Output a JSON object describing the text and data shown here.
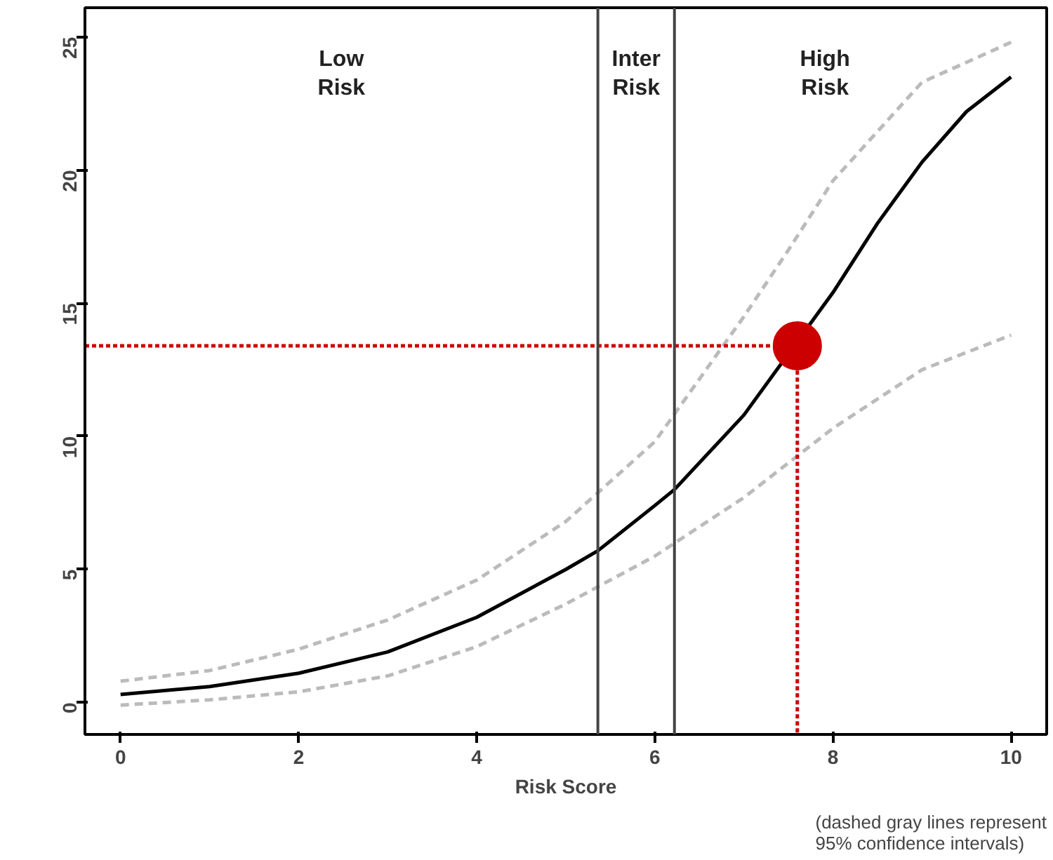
{
  "chart_data": {
    "type": "line",
    "xlabel": "Risk Score",
    "x": [
      0,
      1,
      2,
      3,
      4,
      5,
      5.36,
      6,
      6.22,
      7,
      8,
      8.5,
      9,
      9.5,
      10
    ],
    "series": [
      {
        "color": "#000000",
        "line_style": "solid",
        "values": [
          0.3,
          0.6,
          1.1,
          1.9,
          3.2,
          5.0,
          5.7,
          7.4,
          8.0,
          10.8,
          15.4,
          18.0,
          20.3,
          22.2,
          23.5
        ]
      },
      {
        "type": "line",
        "color": "#bbbbbb",
        "line_style": "dashed",
        "x": [
          0,
          1,
          2,
          3,
          4,
          5,
          6,
          7,
          7.5,
          8,
          9,
          10
        ],
        "values": [
          0.8,
          1.2,
          2.0,
          3.1,
          4.6,
          6.8,
          9.8,
          14.5,
          17.0,
          19.6,
          23.3,
          24.8
        ]
      },
      {
        "type": "line",
        "color": "#bbbbbb",
        "line_style": "dashed",
        "x": [
          0,
          1,
          2,
          3,
          4,
          5,
          6,
          7,
          8,
          9,
          10
        ],
        "values": [
          -0.1,
          0.1,
          0.4,
          1.0,
          2.1,
          3.7,
          5.5,
          7.7,
          10.3,
          12.5,
          13.8
        ]
      },
      {
        "type": "line",
        "color": "#cc0000",
        "line_style": "dotted",
        "x": [
          -0.4,
          7.6,
          7.6
        ],
        "values": [
          13.4,
          13.4,
          -1.2
        ]
      },
      {
        "type": "scatter",
        "color": "#cc0000",
        "marker": "circle",
        "x": [
          7.6
        ],
        "values": [
          13.4
        ]
      }
    ],
    "ref_lines": [
      {
        "axis": "x",
        "value": 5.36,
        "color": "#444444"
      },
      {
        "axis": "x",
        "value": 6.22,
        "color": "#444444"
      }
    ],
    "annotations": [
      "Low\nRisk",
      "Inter\nRisk",
      "High\nRisk",
      "(dashed gray lines represent\n95% confidence intervals)"
    ],
    "xlim": [
      -0.4,
      10.4
    ],
    "ylim": [
      -1.2,
      26.1
    ],
    "xticks": [
      0,
      2,
      4,
      6,
      8,
      10
    ],
    "yticks": [
      0,
      5,
      10,
      15,
      20,
      25
    ],
    "grid": false
  }
}
